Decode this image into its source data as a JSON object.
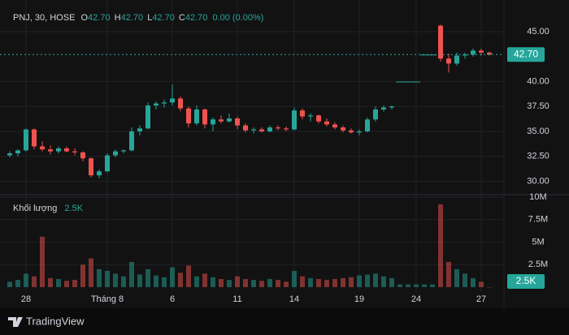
{
  "chart_data": {
    "type": "candlestick",
    "header": {
      "symbol": "PNJ, 30, HOSE",
      "ohlc": [
        {
          "key": "O",
          "value": "42.70"
        },
        {
          "key": "H",
          "value": "42.70"
        },
        {
          "key": "L",
          "value": "42.70"
        },
        {
          "key": "C",
          "value": "42.70"
        }
      ],
      "change": "0.00 (0.00%)"
    },
    "categories": [
      null,
      null,
      "28",
      null,
      null,
      null,
      null,
      null,
      null,
      null,
      null,
      null,
      "Tháng 8",
      null,
      null,
      null,
      null,
      null,
      null,
      null,
      "6",
      null,
      null,
      null,
      null,
      null,
      null,
      null,
      "11",
      null,
      null,
      null,
      null,
      null,
      null,
      "14",
      null,
      null,
      null,
      null,
      null,
      null,
      null,
      "19",
      null,
      null,
      null,
      null,
      null,
      null,
      "24",
      null,
      null,
      null,
      null,
      null,
      null,
      null,
      "27",
      null
    ],
    "open": [
      32.6,
      32.8,
      33.1,
      35.2,
      33.5,
      33.2,
      33.0,
      33.3,
      33.0,
      32.9,
      32.3,
      30.6,
      31.0,
      32.6,
      33.0,
      33.1,
      35.0,
      35.3,
      37.6,
      37.8,
      37.9,
      38.3,
      37.3,
      35.8,
      37.2,
      35.7,
      36.2,
      36.0,
      36.3,
      35.6,
      35.1,
      35.2,
      35.0,
      35.4,
      35.3,
      35.2,
      37.1,
      36.5,
      36.6,
      36.0,
      35.7,
      35.4,
      35.1,
      34.9,
      35.0,
      36.2,
      37.2,
      37.4,
      40,
      40,
      40,
      42.7,
      42.7,
      45.6,
      42.3,
      41.8,
      42.6,
      42.7,
      43.1,
      42.9
    ],
    "high": [
      33.0,
      33.2,
      35.3,
      35.3,
      34.0,
      33.6,
      33.5,
      33.5,
      33.3,
      33.0,
      32.4,
      31.2,
      32.8,
      33.2,
      33.2,
      35.4,
      35.6,
      37.9,
      38.0,
      38.2,
      39.7,
      38.5,
      37.5,
      37.6,
      37.3,
      36.4,
      36.6,
      36.8,
      36.5,
      35.8,
      35.4,
      35.4,
      35.6,
      35.6,
      35.5,
      37.4,
      37.3,
      36.8,
      36.7,
      36.3,
      35.9,
      35.6,
      35.3,
      35.2,
      36.4,
      37.5,
      37.6,
      37.6,
      40,
      40,
      40,
      42.7,
      42.7,
      45.7,
      42.8,
      42.9,
      42.9,
      43.3,
      43.3,
      43.0
    ],
    "low": [
      32.4,
      32.5,
      33.0,
      33.2,
      33.0,
      32.7,
      32.8,
      32.9,
      32.6,
      32.0,
      30.4,
      30.3,
      30.9,
      32.4,
      32.8,
      33.0,
      34.6,
      35.2,
      37.2,
      37.4,
      37.6,
      37.0,
      35.4,
      35.6,
      35.3,
      35.0,
      35.8,
      35.9,
      35.2,
      34.9,
      34.8,
      34.9,
      34.9,
      35.1,
      35.0,
      35.1,
      36.2,
      36.0,
      35.8,
      35.5,
      35.2,
      34.9,
      34.8,
      34.6,
      34.9,
      36.0,
      37.0,
      37.2,
      40,
      40,
      40,
      42.7,
      42.7,
      42.0,
      40.9,
      41.6,
      42.3,
      42.5,
      42.6,
      42.6
    ],
    "close": [
      32.8,
      33.1,
      35.2,
      33.5,
      33.2,
      33.0,
      33.3,
      33.0,
      32.9,
      32.3,
      30.6,
      31.0,
      32.6,
      33.0,
      33.1,
      35.0,
      35.3,
      37.6,
      37.8,
      37.9,
      38.3,
      37.3,
      35.8,
      37.2,
      35.7,
      36.2,
      36.0,
      36.3,
      35.6,
      35.1,
      35.2,
      35.0,
      35.4,
      35.3,
      35.2,
      37.1,
      36.5,
      36.6,
      36.0,
      35.7,
      35.4,
      35.1,
      34.9,
      35.0,
      36.2,
      37.2,
      37.4,
      37.5,
      40,
      40,
      40,
      42.7,
      42.7,
      42.3,
      41.8,
      42.6,
      42.7,
      43.1,
      42.9,
      42.7
    ],
    "up_color": "#26a69a",
    "down_color": "#ef5350",
    "ylim": [
      28.66,
      48.17
    ],
    "yticks": [
      {
        "value": 30,
        "label": "30.00"
      },
      {
        "value": 32.5,
        "label": "32.50"
      },
      {
        "value": 35,
        "label": "35.00"
      },
      {
        "value": 37.5,
        "label": "37.50"
      },
      {
        "value": 40,
        "label": "40.00"
      },
      {
        "value": 45,
        "label": "45.00"
      }
    ],
    "last_price": {
      "value": 42.7,
      "label": "42.70"
    },
    "grid": true,
    "volume": {
      "title": "Khối lượng",
      "values": [
        600000,
        800000,
        1500000,
        1200000,
        5600000,
        1000000,
        900000,
        700000,
        800000,
        2500000,
        3200000,
        2000000,
        1800000,
        1500000,
        1200000,
        2800000,
        1400000,
        2000000,
        1300000,
        1100000,
        2200000,
        1600000,
        2400000,
        1200000,
        1500000,
        1100000,
        900000,
        800000,
        1200000,
        900000,
        800000,
        700000,
        900000,
        800000,
        600000,
        1800000,
        1200000,
        1000000,
        900000,
        800000,
        900000,
        1000000,
        1100000,
        1300000,
        1400000,
        1500000,
        1200000,
        1000000,
        300000,
        300000,
        300000,
        300000,
        300000,
        9200000,
        2800000,
        2000000,
        1500000,
        1000000,
        600000,
        2500
      ],
      "value_labels": [
        null,
        null,
        null,
        null,
        null,
        null,
        null,
        null,
        null,
        null,
        null,
        null,
        null,
        null,
        null,
        null,
        null,
        null,
        null,
        null,
        null,
        null,
        null,
        null,
        null,
        null,
        null,
        null,
        null,
        null,
        null,
        null,
        null,
        null,
        null,
        null,
        null,
        null,
        null,
        null,
        null,
        null,
        null,
        null,
        null,
        null,
        null,
        null,
        null,
        null,
        null,
        null,
        null,
        null,
        null,
        null,
        null,
        null,
        null,
        "2.5K"
      ],
      "ylim": [
        0,
        10270000
      ],
      "yticks": [
        {
          "value": 2500000,
          "label": "2.5M"
        },
        {
          "value": 5000000,
          "label": "5M"
        },
        {
          "value": 7500000,
          "label": "7.5M"
        },
        {
          "value": 10000000,
          "label": "10M"
        }
      ]
    }
  },
  "footer": {
    "brand": "TradingView"
  }
}
